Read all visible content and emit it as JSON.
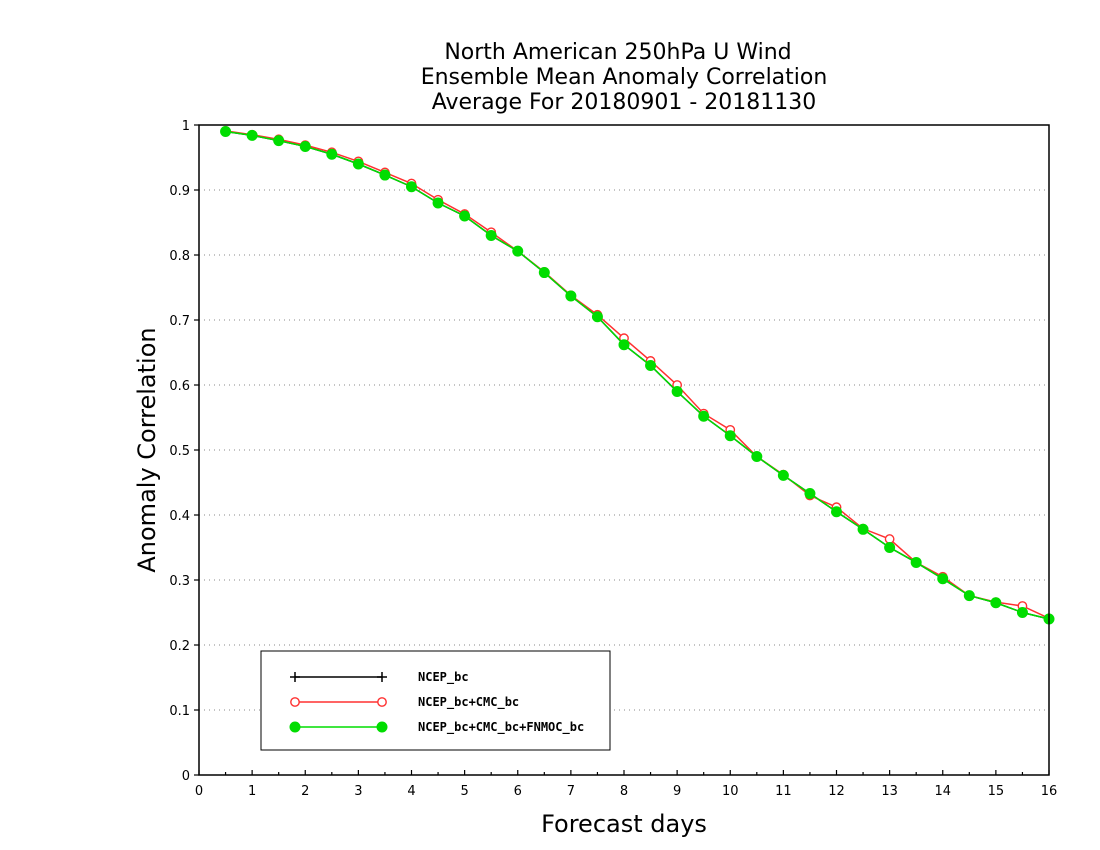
{
  "chart_data": {
    "type": "line",
    "title": [
      "North American 250hPa U Wind",
      "Ensemble Mean Anomaly Correlation",
      "Average For 20180901 - 20181130"
    ],
    "xlabel": "Forecast days",
    "ylabel": "Anomaly Correlation",
    "xlim": [
      0,
      16
    ],
    "ylim": [
      0,
      1
    ],
    "xticks": [
      "0",
      "1",
      "2",
      "3",
      "4",
      "5",
      "6",
      "7",
      "8",
      "9",
      "10",
      "11",
      "12",
      "13",
      "14",
      "15",
      "16"
    ],
    "yticks": [
      "0",
      "0.1",
      "0.2",
      "0.3",
      "0.4",
      "0.5",
      "0.6",
      "0.7",
      "0.8",
      "0.9",
      "1"
    ],
    "grid": "y-dotted",
    "legend_position": "bottom-left",
    "x": [
      0.5,
      1,
      1.5,
      2,
      2.5,
      3,
      3.5,
      4,
      4.5,
      5,
      5.5,
      6,
      6.5,
      7,
      7.5,
      8,
      8.5,
      9,
      9.5,
      10,
      10.5,
      11,
      11.5,
      12,
      12.5,
      13,
      13.5,
      14,
      14.5,
      15,
      15.5,
      16
    ],
    "series": [
      {
        "name": "NCEP_bc",
        "color": "#000000",
        "marker": "plus",
        "values": [
          0.99,
          0.984,
          0.976,
          0.967,
          0.955,
          0.94,
          0.923,
          0.905,
          0.88,
          0.86,
          0.83,
          0.806,
          0.773,
          0.737,
          0.705,
          0.662,
          0.63,
          0.59,
          0.552,
          0.522,
          0.49,
          0.461,
          0.433,
          0.405,
          0.378,
          0.35,
          0.327,
          0.302,
          0.276,
          0.265,
          0.25,
          0.24
        ]
      },
      {
        "name": "NCEP_bc+CMC_bc",
        "color": "#ff3030",
        "marker": "open-circle",
        "values": [
          0.991,
          0.985,
          0.978,
          0.969,
          0.958,
          0.944,
          0.927,
          0.91,
          0.885,
          0.863,
          0.835,
          0.806,
          0.774,
          0.738,
          0.708,
          0.672,
          0.637,
          0.6,
          0.556,
          0.531,
          0.49,
          0.462,
          0.43,
          0.412,
          0.379,
          0.363,
          0.327,
          0.305,
          0.276,
          0.266,
          0.26,
          0.241
        ]
      },
      {
        "name": "NCEP_bc+CMC_bc+FNMOC_bc",
        "color": "#00dd00",
        "marker": "filled-circle",
        "values": [
          0.99,
          0.984,
          0.976,
          0.967,
          0.955,
          0.94,
          0.923,
          0.905,
          0.88,
          0.86,
          0.83,
          0.806,
          0.773,
          0.737,
          0.705,
          0.662,
          0.63,
          0.59,
          0.552,
          0.522,
          0.49,
          0.461,
          0.433,
          0.405,
          0.378,
          0.35,
          0.327,
          0.302,
          0.276,
          0.265,
          0.25,
          0.24
        ]
      }
    ]
  }
}
